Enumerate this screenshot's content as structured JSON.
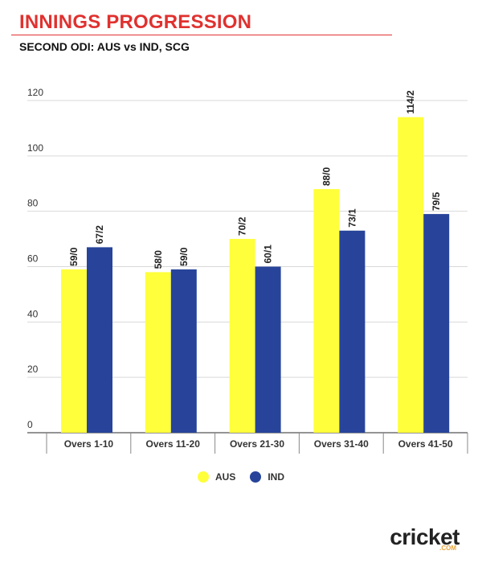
{
  "header": {
    "title": "INNINGS PROGRESSION",
    "subtitle": "SECOND ODI: AUS vs IND, SCG"
  },
  "colors": {
    "title": "#e0312f",
    "AUS": "#ffff3b",
    "IND": "#27449a",
    "grid": "#d9d9d9"
  },
  "brand": {
    "name": "cricket",
    "sub": ".COM"
  },
  "chart_data": {
    "type": "bar",
    "title": "INNINGS PROGRESSION",
    "subtitle": "SECOND ODI: AUS vs IND, SCG",
    "categories": [
      "Overs 1-10",
      "Overs 11-20",
      "Overs 21-30",
      "Overs 31-40",
      "Overs 41-50"
    ],
    "series": [
      {
        "name": "AUS",
        "values": [
          59,
          58,
          70,
          88,
          114
        ],
        "labels": [
          "59/0",
          "58/0",
          "70/2",
          "88/0",
          "114/2"
        ]
      },
      {
        "name": "IND",
        "values": [
          67,
          59,
          60,
          73,
          79
        ],
        "labels": [
          "67/2",
          "59/0",
          "60/1",
          "73/1",
          "79/5"
        ]
      }
    ],
    "yticks": [
      "0",
      "20",
      "40",
      "60",
      "80",
      "100",
      "120"
    ],
    "ylim": [
      0,
      120
    ],
    "xlabel": "",
    "ylabel": "",
    "grid": true,
    "legend": "bottom-center"
  }
}
